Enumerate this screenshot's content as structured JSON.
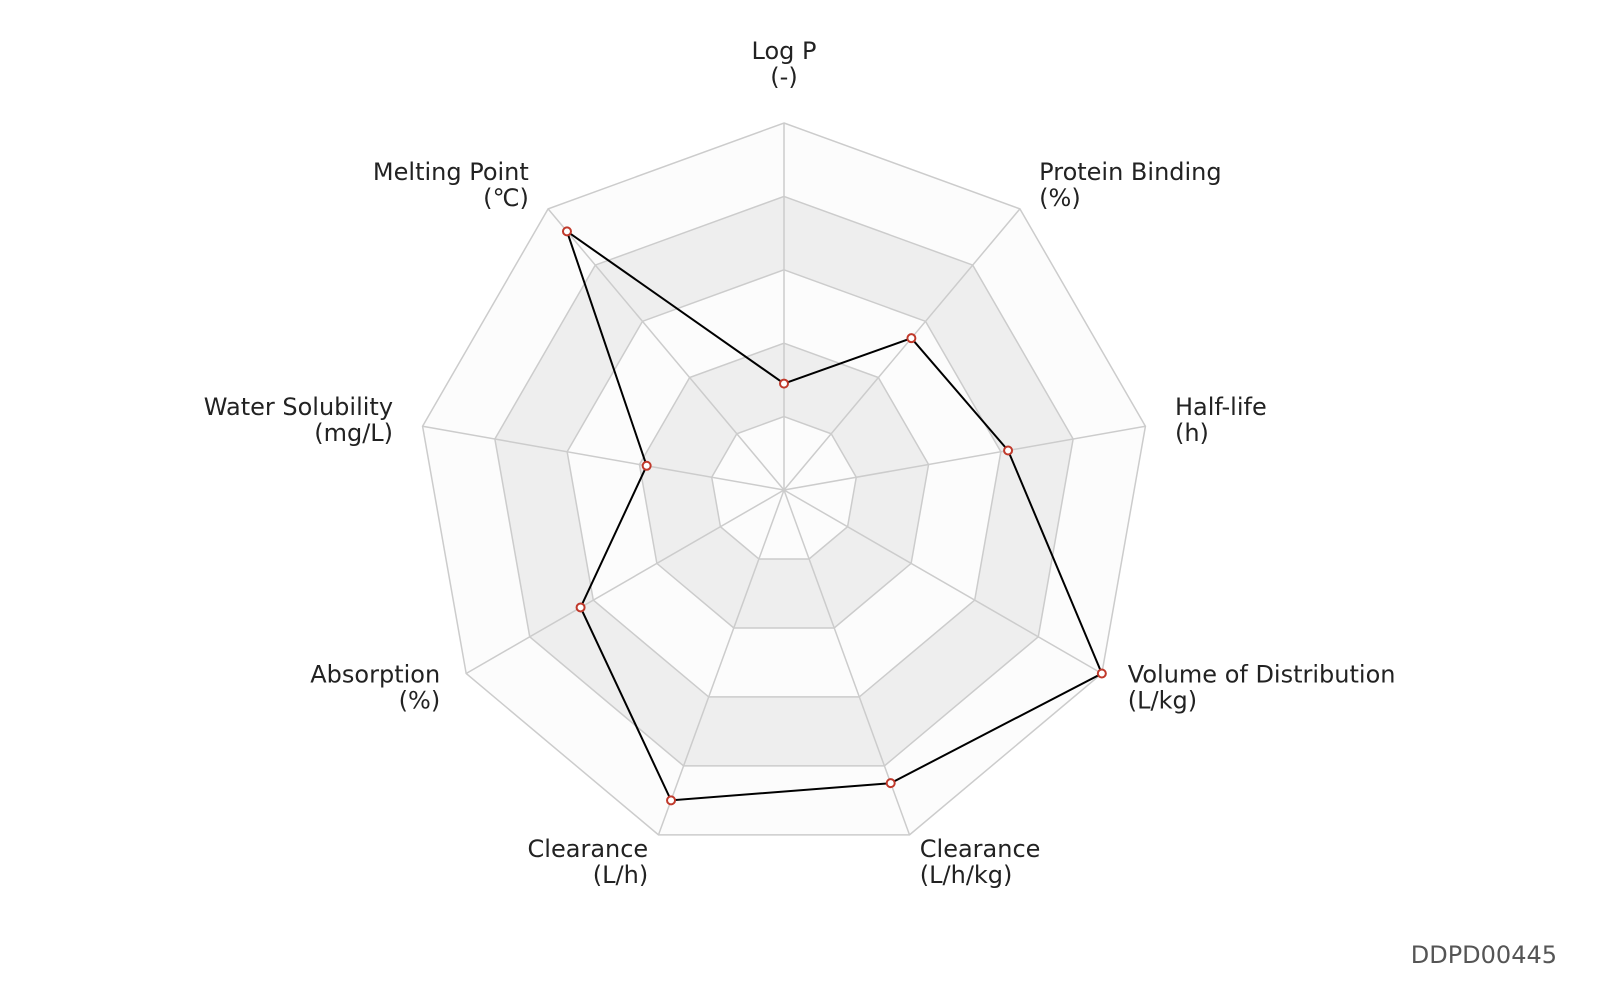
{
  "chart_data": {
    "type": "radar",
    "categories": [
      "Log P",
      "Protein Binding",
      "Half-life",
      "Volume of Distribution",
      "Clearance",
      "Clearance",
      "Absorption",
      "Water Solubility",
      "Melting Point"
    ],
    "units": [
      "(-)",
      "(%)",
      "(h)",
      "(L/kg)",
      "(L/h/kg)",
      "(L/h)",
      "(%)",
      "(mg/L)",
      "(℃)"
    ],
    "values": [
      0.29,
      0.54,
      0.62,
      1.0,
      0.85,
      0.9,
      0.64,
      0.38,
      0.92
    ],
    "color": "#000000",
    "marker_color": "#c0392b",
    "ylim": [
      0,
      1
    ],
    "yticks": [
      0.2,
      0.4,
      0.6,
      0.8,
      1.0
    ],
    "grid": true,
    "footnote": "DDPD00445"
  }
}
